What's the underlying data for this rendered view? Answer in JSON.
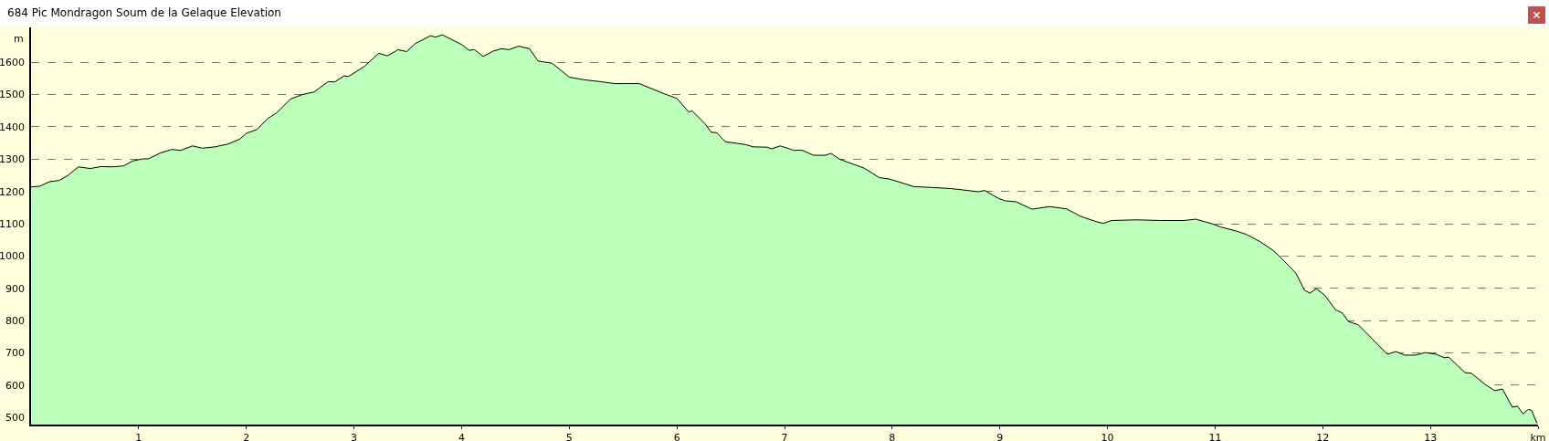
{
  "chart_data": {
    "type": "area",
    "title": "684 Pic Mondragon Soum de la Gelaque Elevation",
    "ylabel": "m",
    "x": [
      0,
      0.08,
      0.17,
      0.26,
      0.34,
      0.44,
      0.55,
      0.65,
      0.75,
      0.86,
      0.94,
      1.04,
      1.09,
      1.2,
      1.31,
      1.39,
      1.5,
      1.59,
      1.71,
      1.83,
      1.94,
      2.0,
      2.1,
      2.2,
      2.28,
      2.41,
      2.52,
      2.63,
      2.76,
      2.82,
      2.91,
      2.95,
      3.1,
      3.23,
      3.31,
      3.41,
      3.49,
      3.57,
      3.71,
      3.76,
      3.82,
      4.0,
      4.07,
      4.12,
      4.2,
      4.29,
      4.37,
      4.44,
      4.53,
      4.63,
      4.71,
      4.84,
      5.0,
      5.13,
      5.29,
      5.42,
      5.65,
      5.87,
      6.0,
      6.11,
      6.14,
      6.26,
      6.32,
      6.37,
      6.45,
      6.64,
      6.71,
      6.84,
      6.88,
      6.96,
      7.09,
      7.16,
      7.27,
      7.38,
      7.43,
      7.51,
      7.74,
      7.88,
      7.98,
      8.2,
      8.38,
      8.54,
      8.65,
      8.8,
      8.86,
      8.99,
      9.05,
      9.15,
      9.3,
      9.46,
      9.62,
      9.75,
      9.88,
      9.96,
      10.04,
      10.27,
      10.49,
      10.71,
      10.82,
      10.97,
      11.05,
      11.19,
      11.29,
      11.42,
      11.54,
      11.64,
      11.75,
      11.83,
      11.88,
      11.94,
      12.02,
      12.12,
      12.18,
      12.24,
      12.33,
      12.6,
      12.68,
      12.76,
      12.86,
      12.95,
      13.05,
      13.13,
      13.17,
      13.32,
      13.38,
      13.51,
      13.6,
      13.67,
      13.76,
      13.81,
      13.86,
      13.91,
      13.94,
      13.99
    ],
    "series": [
      {
        "color": "#000000",
        "values": [
          1214,
          1216,
          1230,
          1234,
          1249,
          1276,
          1271,
          1277,
          1276,
          1279,
          1294,
          1301,
          1301,
          1319,
          1330,
          1327,
          1341,
          1334,
          1338,
          1347,
          1362,
          1380,
          1392,
          1426,
          1443,
          1486,
          1500,
          1508,
          1540,
          1539,
          1558,
          1556,
          1588,
          1628,
          1620,
          1639,
          1633,
          1658,
          1682,
          1678,
          1685,
          1655,
          1637,
          1639,
          1618,
          1634,
          1642,
          1639,
          1650,
          1642,
          1604,
          1597,
          1554,
          1546,
          1540,
          1534,
          1534,
          1504,
          1488,
          1446,
          1450,
          1410,
          1383,
          1382,
          1354,
          1345,
          1338,
          1337,
          1332,
          1341,
          1327,
          1328,
          1312,
          1312,
          1318,
          1300,
          1272,
          1243,
          1238,
          1215,
          1212,
          1209,
          1205,
          1199,
          1203,
          1178,
          1171,
          1168,
          1145,
          1153,
          1146,
          1123,
          1108,
          1101,
          1110,
          1112,
          1110,
          1110,
          1114,
          1100,
          1090,
          1078,
          1067,
          1044,
          1017,
          985,
          947,
          894,
          885,
          899,
          878,
          833,
          824,
          797,
          787,
          696,
          704,
          693,
          693,
          701,
          696,
          685,
          687,
          639,
          637,
          602,
          583,
          588,
          532,
          535,
          511,
          525,
          522,
          482
        ]
      }
    ],
    "xlim": [
      0,
      14
    ],
    "xticks": [
      1,
      2,
      3,
      4,
      5,
      6,
      7,
      8,
      9,
      10,
      11,
      12,
      13,
      {
        "value": 14,
        "label": "km"
      }
    ],
    "ylim": [
      478,
      1708
    ],
    "yticks": [
      500,
      600,
      700,
      800,
      900,
      1000,
      1100,
      1200,
      1300,
      1400,
      1500,
      1600
    ],
    "grid": "y"
  }
}
